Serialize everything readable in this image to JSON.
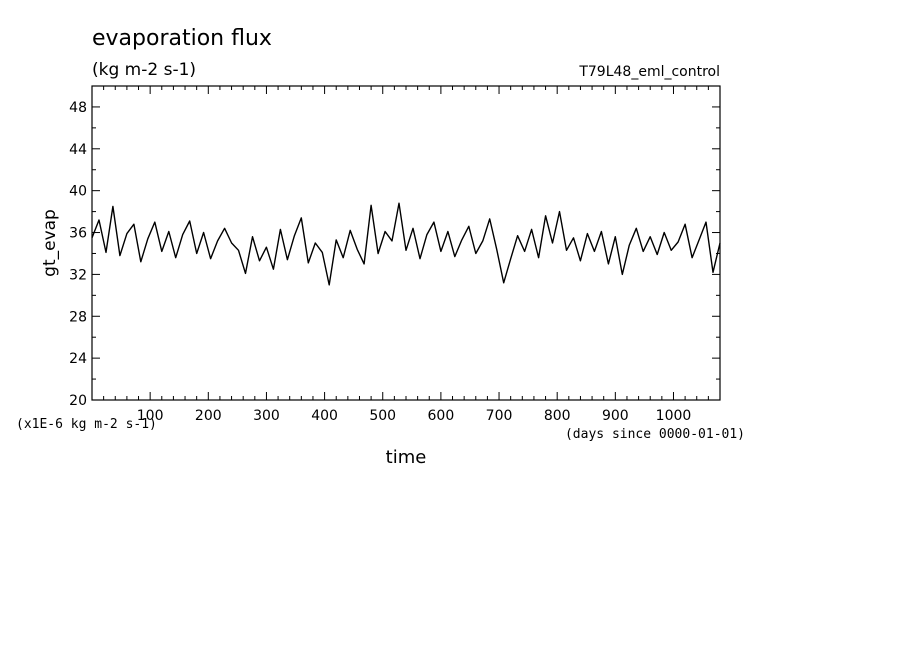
{
  "chart_data": {
    "type": "line",
    "title": "evaporation flux",
    "units": "(kg m-2 s-1)",
    "run_label": "T79L48_eml_control",
    "xlabel": "time",
    "x_units": "(days since 0000-01-01)",
    "ylabel": "gt_evap",
    "y_scale_note": "(x1E-6 kg m-2 s-1)",
    "xlim": [
      0,
      1080
    ],
    "ylim": [
      20,
      50
    ],
    "x_ticks": [
      100,
      200,
      300,
      400,
      500,
      600,
      700,
      800,
      900,
      1000
    ],
    "y_ticks": [
      20,
      24,
      28,
      32,
      36,
      40,
      44,
      48
    ],
    "series": [
      {
        "x": [
          0,
          12,
          24,
          36,
          48,
          60,
          72,
          84,
          96,
          108,
          120,
          132,
          144,
          156,
          168,
          180,
          192,
          204,
          216,
          228,
          240,
          252,
          264,
          276,
          288,
          300,
          312,
          324,
          336,
          348,
          360,
          372,
          384,
          396,
          408,
          420,
          432,
          444,
          456,
          468,
          480,
          492,
          504,
          516,
          528,
          540,
          552,
          564,
          576,
          588,
          600,
          612,
          624,
          636,
          648,
          660,
          672,
          684,
          696,
          708,
          720,
          732,
          744,
          756,
          768,
          780,
          792,
          804,
          816,
          828,
          840,
          852,
          864,
          876,
          888,
          900,
          912,
          924,
          936,
          948,
          960,
          972,
          984,
          996,
          1008,
          1020,
          1032,
          1044,
          1056,
          1068,
          1080
        ],
        "values": [
          35.5,
          37.2,
          34.1,
          38.5,
          33.8,
          35.9,
          36.8,
          33.2,
          35.4,
          37.0,
          34.2,
          36.1,
          33.6,
          35.8,
          37.1,
          34.0,
          36.0,
          33.5,
          35.2,
          36.4,
          35.0,
          34.3,
          32.1,
          35.6,
          33.3,
          34.6,
          32.5,
          36.3,
          33.4,
          35.7,
          37.4,
          33.1,
          35.0,
          34.1,
          31.0,
          35.3,
          33.6,
          36.2,
          34.4,
          33.0,
          38.6,
          34.0,
          36.1,
          35.2,
          38.8,
          34.3,
          36.4,
          33.5,
          35.8,
          37.0,
          34.2,
          36.1,
          33.7,
          35.3,
          36.6,
          34.0,
          35.2,
          37.3,
          34.4,
          31.2,
          33.5,
          35.7,
          34.2,
          36.3,
          33.6,
          37.6,
          35.0,
          38.0,
          34.3,
          35.5,
          33.3,
          35.9,
          34.2,
          36.1,
          33.0,
          35.6,
          32.0,
          34.8,
          36.4,
          34.2,
          35.6,
          33.9,
          36.0,
          34.3,
          35.1,
          36.8,
          33.6,
          35.3,
          37.0,
          32.2,
          35.0
        ]
      }
    ]
  }
}
